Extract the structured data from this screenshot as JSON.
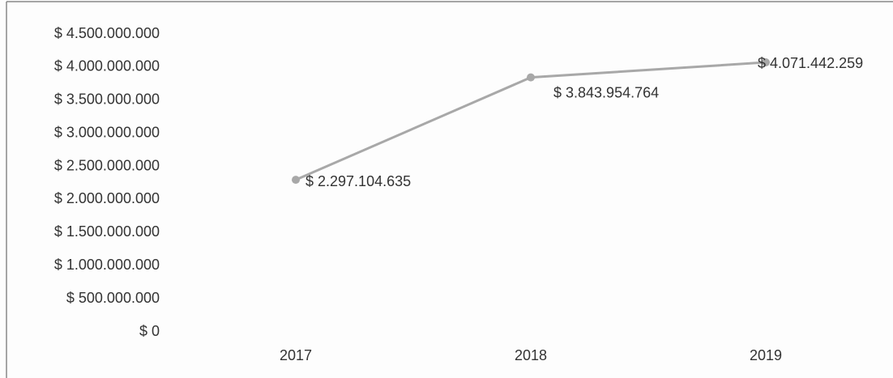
{
  "chart_data": {
    "type": "line",
    "categories": [
      "2017",
      "2018",
      "2019"
    ],
    "series": [
      {
        "color": "#a8a8a8",
        "values": [
          2297104635,
          3843954764,
          4071442259
        ],
        "value_labels": [
          "$ 2.297.104.635",
          "$ 3.843.954.764",
          "$ 4.071.442.259"
        ]
      }
    ],
    "ylim": [
      0,
      4500000000
    ],
    "yticks": [
      {
        "value": 0,
        "label": "$ 0"
      },
      {
        "value": 500000000,
        "label": "$ 500.000.000"
      },
      {
        "value": 1000000000,
        "label": "$ 1.000.000.000"
      },
      {
        "value": 1500000000,
        "label": "$ 1.500.000.000"
      },
      {
        "value": 2000000000,
        "label": "$ 2.000.000.000"
      },
      {
        "value": 2500000000,
        "label": "$ 2.500.000.000"
      },
      {
        "value": 3000000000,
        "label": "$ 3.000.000.000"
      },
      {
        "value": 3500000000,
        "label": "$ 3.500.000.000"
      },
      {
        "value": 4000000000,
        "label": "$ 4.000.000.000"
      },
      {
        "value": 4500000000,
        "label": "$ 4.500.000.000"
      }
    ],
    "grid": false
  }
}
